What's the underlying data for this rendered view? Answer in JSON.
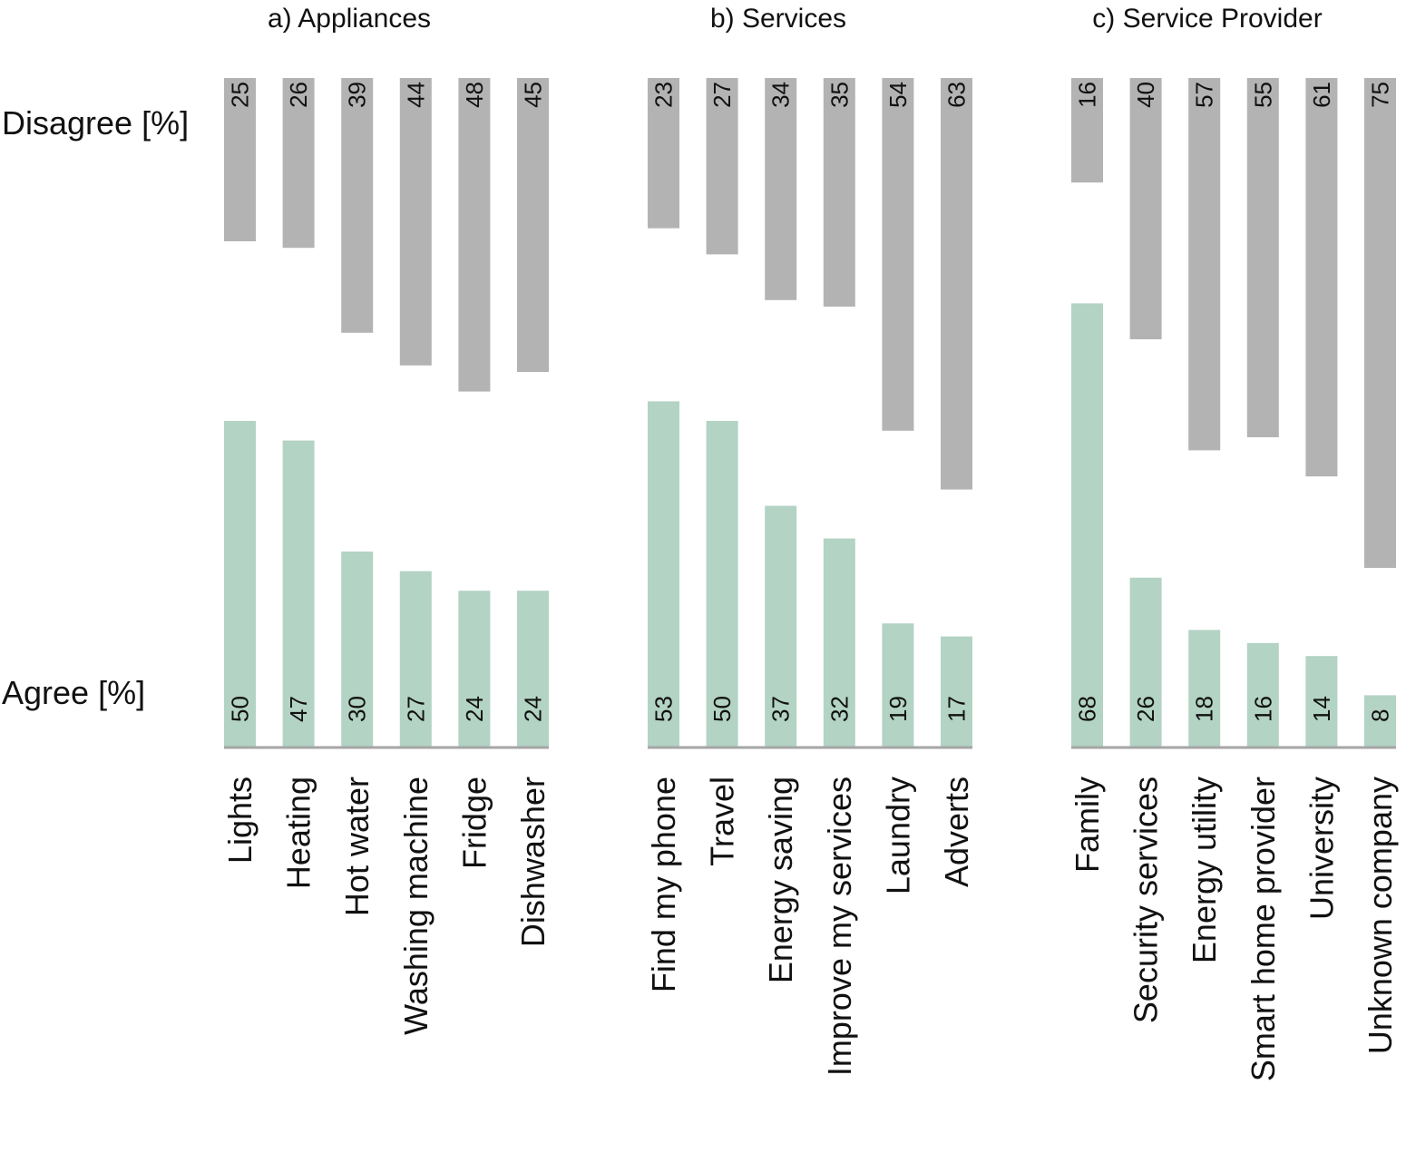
{
  "labels": {
    "disagree": "Disagree [%]",
    "agree": "Agree [%]"
  },
  "colors": {
    "disagree": "#b3b3b3",
    "agree": "#b3d3c4",
    "baseline": "#a6a6a6",
    "text": "#111111"
  },
  "chart_data": [
    {
      "type": "bar",
      "title": "a) Appliances",
      "categories": [
        "Lights",
        "Heating",
        "Hot water",
        "Washing machine",
        "Fridge",
        "Dishwasher"
      ],
      "series": [
        {
          "name": "Disagree [%]",
          "values": [
            25,
            26,
            39,
            44,
            48,
            45
          ]
        },
        {
          "name": "Agree [%]",
          "values": [
            50,
            47,
            30,
            27,
            24,
            24
          ]
        }
      ]
    },
    {
      "type": "bar",
      "title": "b) Services",
      "categories": [
        "Find my phone",
        "Travel",
        "Energy saving",
        "Improve my services",
        "Laundry",
        "Adverts"
      ],
      "series": [
        {
          "name": "Disagree [%]",
          "values": [
            23,
            27,
            34,
            35,
            54,
            63
          ]
        },
        {
          "name": "Agree [%]",
          "values": [
            53,
            50,
            37,
            32,
            19,
            17
          ]
        }
      ]
    },
    {
      "type": "bar",
      "title": "c) Service Provider",
      "categories": [
        "Family",
        "Security services",
        "Energy utility",
        "Smart home provider",
        "University",
        "Unknown company"
      ],
      "series": [
        {
          "name": "Disagree [%]",
          "values": [
            16,
            40,
            57,
            55,
            61,
            75
          ]
        },
        {
          "name": "Agree [%]",
          "values": [
            68,
            26,
            18,
            16,
            14,
            8
          ]
        }
      ]
    }
  ]
}
